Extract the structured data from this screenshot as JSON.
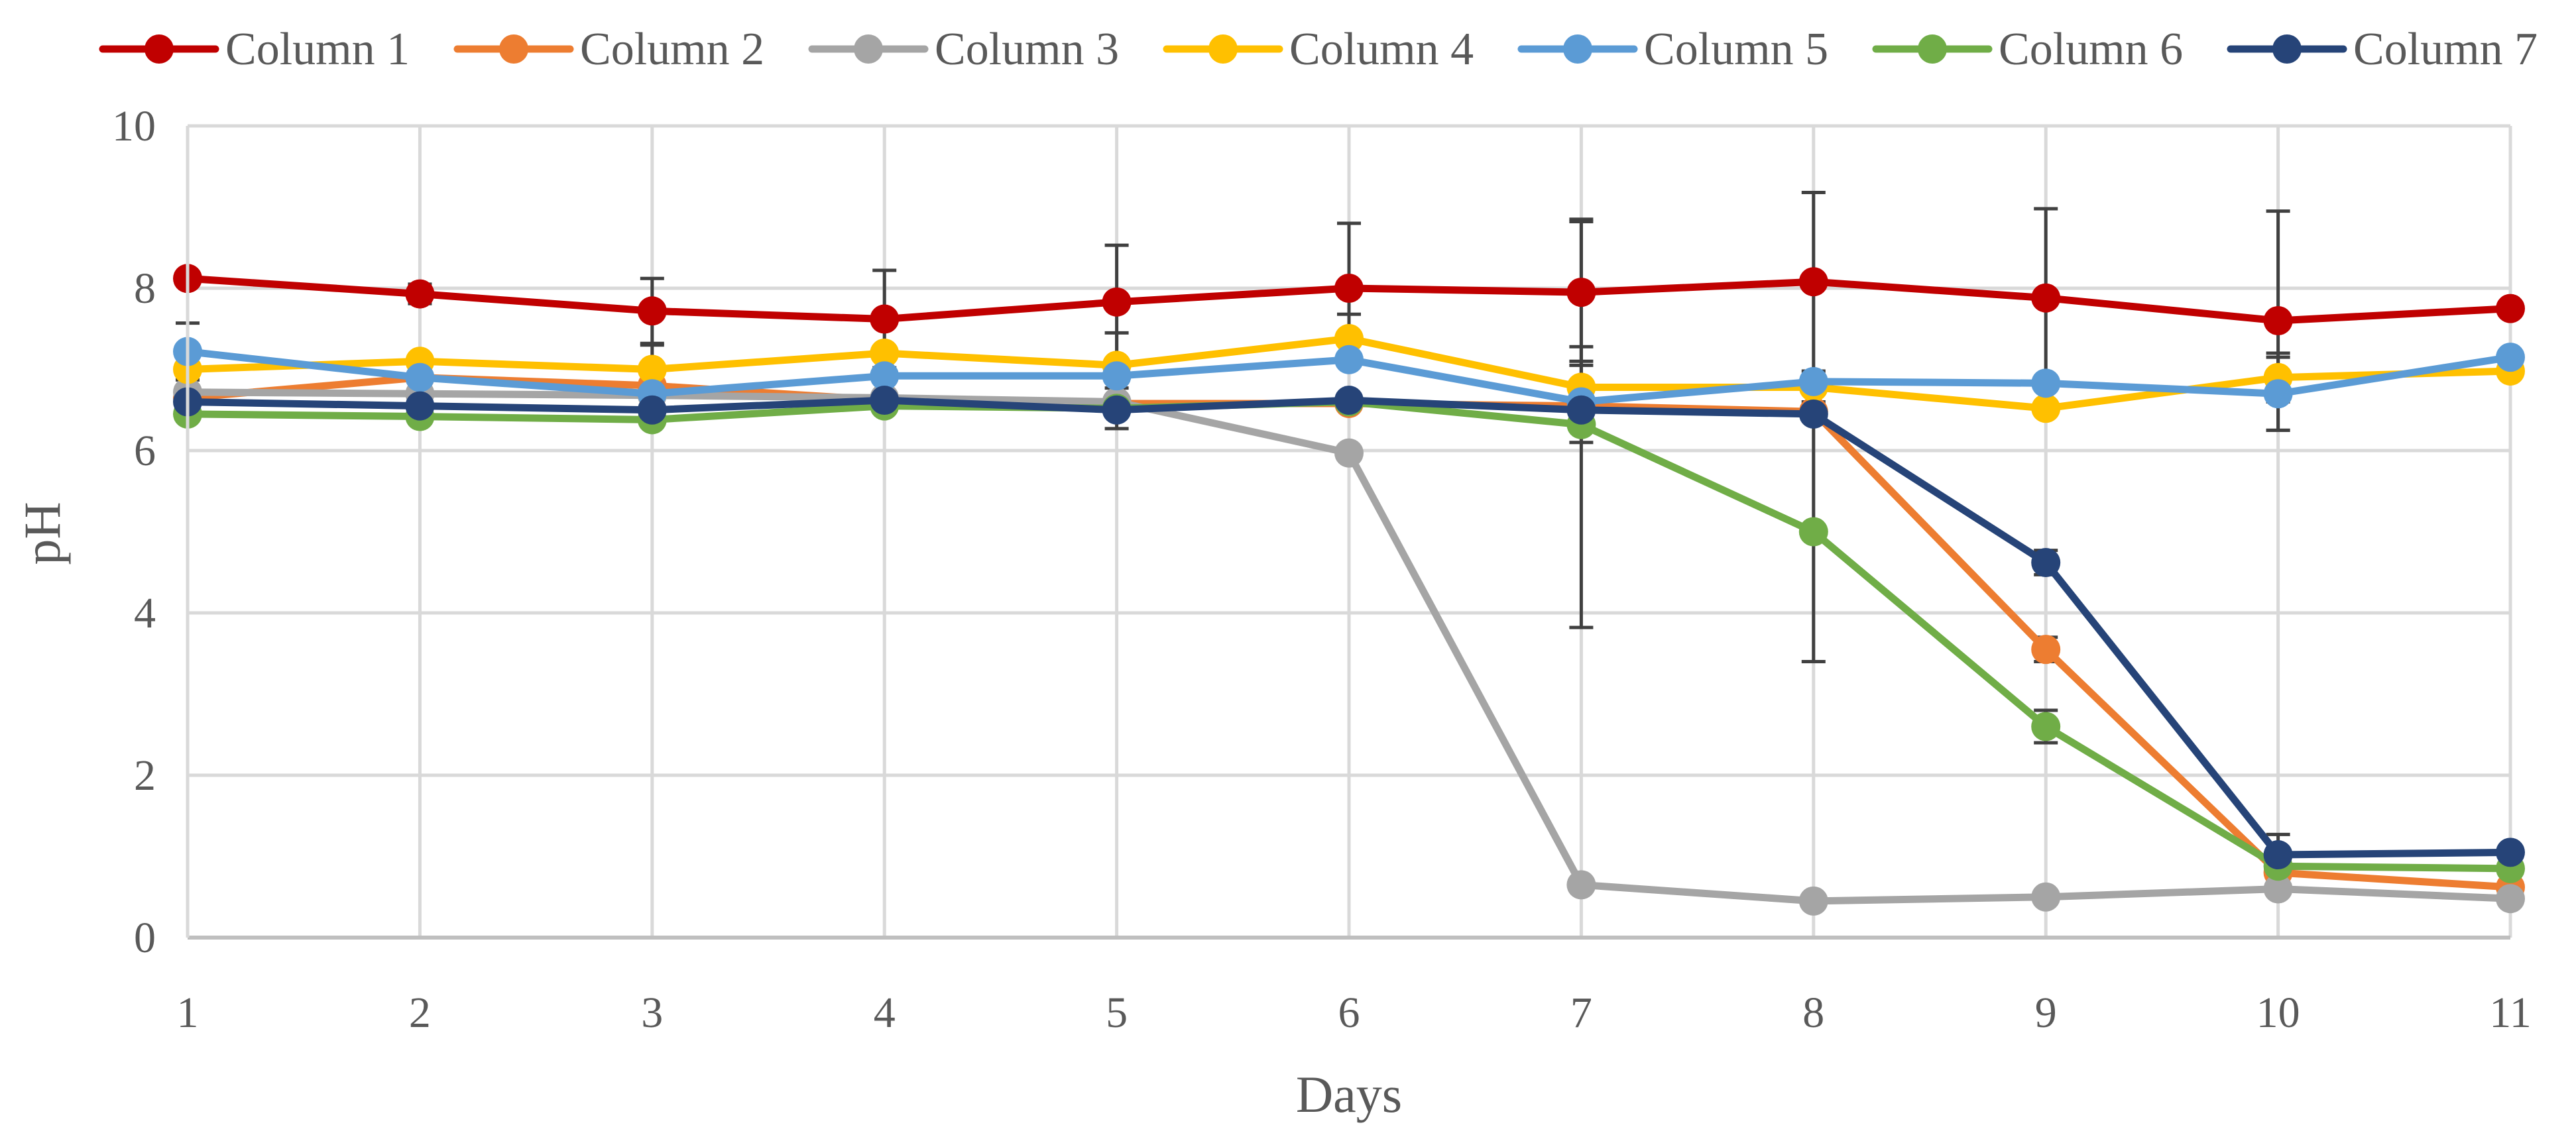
{
  "chart_data": {
    "type": "line",
    "title": "",
    "xlabel": "Days",
    "ylabel": "pH",
    "x": [
      1,
      2,
      3,
      4,
      5,
      6,
      7,
      8,
      9,
      10,
      11
    ],
    "xlim": [
      1,
      11
    ],
    "ylim": [
      0,
      10
    ],
    "yticks": [
      0,
      2,
      4,
      6,
      8,
      10
    ],
    "grid": true,
    "legend_position": "top",
    "series": [
      {
        "name": "Column 1",
        "color": "#C00000",
        "values": [
          8.12,
          7.93,
          7.72,
          7.62,
          7.83,
          8.0,
          7.95,
          8.08,
          7.88,
          7.6,
          7.75
        ],
        "errors": [
          0,
          0.12,
          0.4,
          0.6,
          0.7,
          0.8,
          0.9,
          1.1,
          1.1,
          1.35,
          0
        ]
      },
      {
        "name": "Column 2",
        "color": "#ED7D31",
        "values": [
          6.65,
          6.9,
          6.8,
          6.62,
          6.58,
          6.58,
          6.55,
          6.48,
          3.55,
          0.8,
          0.62
        ],
        "errors": [
          0,
          0,
          0,
          0,
          0,
          0,
          0,
          0,
          0.15,
          0.15,
          0
        ]
      },
      {
        "name": "Column 3",
        "color": "#A5A5A5",
        "values": [
          6.72,
          6.7,
          6.68,
          6.65,
          6.6,
          5.97,
          0.65,
          0.45,
          0.5,
          0.6,
          0.48
        ],
        "errors": [
          0,
          0,
          0,
          0,
          0,
          0,
          0,
          0,
          0,
          0,
          0
        ]
      },
      {
        "name": "Column 4",
        "color": "#FFC000",
        "values": [
          7.0,
          7.1,
          7.0,
          7.2,
          7.05,
          7.38,
          6.78,
          6.78,
          6.52,
          6.9,
          6.98
        ],
        "errors": [
          0,
          0,
          0.3,
          0,
          0.4,
          0.3,
          0.5,
          0,
          0,
          0.3,
          0
        ]
      },
      {
        "name": "Column 5",
        "color": "#5B9BD5",
        "values": [
          7.22,
          6.9,
          6.7,
          6.92,
          6.92,
          7.12,
          6.6,
          6.85,
          6.83,
          6.7,
          7.15
        ],
        "errors": [
          0.35,
          0,
          0,
          0,
          0,
          0,
          0.5,
          0,
          0,
          0.45,
          0
        ]
      },
      {
        "name": "Column 6",
        "color": "#70AD47",
        "values": [
          6.45,
          6.42,
          6.38,
          6.55,
          6.52,
          6.6,
          6.32,
          5.0,
          2.6,
          0.88,
          0.85
        ],
        "errors": [
          0,
          0,
          0,
          0,
          0.25,
          0,
          2.5,
          1.6,
          0.2,
          0,
          0
        ]
      },
      {
        "name": "Column 7",
        "color": "#264478",
        "values": [
          6.6,
          6.55,
          6.5,
          6.62,
          6.5,
          6.62,
          6.5,
          6.45,
          4.62,
          1.02,
          1.05
        ],
        "errors": [
          0,
          0,
          0,
          0,
          0,
          0,
          0,
          0,
          0.15,
          0.25,
          0
        ]
      }
    ]
  }
}
